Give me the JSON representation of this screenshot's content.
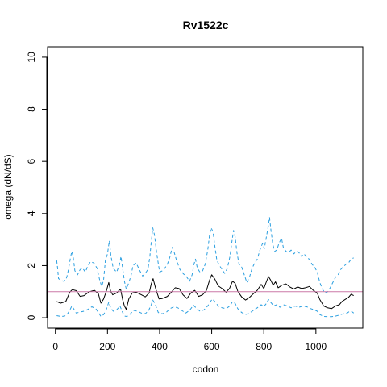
{
  "chart_data": {
    "type": "line",
    "title": "Rv1522c",
    "xlabel": "codon",
    "ylabel": "omega (dN/dS)",
    "xlim": [
      -30,
      1180
    ],
    "ylim": [
      -0.4,
      10.4
    ],
    "x_ticks": [
      0,
      200,
      400,
      600,
      800,
      1000
    ],
    "y_ticks": [
      0,
      2,
      4,
      6,
      8,
      10
    ],
    "x_tick_labels": [
      "0",
      "200",
      "400",
      "600",
      "800",
      "1000"
    ],
    "y_tick_labels": [
      "0",
      "2",
      "4",
      "6",
      "8",
      "10"
    ],
    "reference_line": {
      "y": 1,
      "color": "#cc79a7"
    },
    "series": [
      {
        "style": "solid",
        "color": "#000000",
        "points": [
          [
            5,
            0.62
          ],
          [
            20,
            0.56
          ],
          [
            40,
            0.62
          ],
          [
            55,
            0.98
          ],
          [
            65,
            1.08
          ],
          [
            80,
            1.04
          ],
          [
            95,
            0.82
          ],
          [
            110,
            0.85
          ],
          [
            130,
            1.0
          ],
          [
            150,
            1.05
          ],
          [
            165,
            0.92
          ],
          [
            175,
            0.56
          ],
          [
            185,
            0.72
          ],
          [
            195,
            1.0
          ],
          [
            205,
            1.35
          ],
          [
            212,
            1.02
          ],
          [
            220,
            0.88
          ],
          [
            235,
            0.95
          ],
          [
            250,
            1.1
          ],
          [
            258,
            0.7
          ],
          [
            265,
            0.45
          ],
          [
            272,
            0.32
          ],
          [
            282,
            0.72
          ],
          [
            295,
            0.95
          ],
          [
            310,
            0.98
          ],
          [
            330,
            0.88
          ],
          [
            345,
            0.8
          ],
          [
            360,
            0.95
          ],
          [
            368,
            1.3
          ],
          [
            375,
            1.5
          ],
          [
            385,
            1.12
          ],
          [
            398,
            0.72
          ],
          [
            410,
            0.74
          ],
          [
            430,
            0.82
          ],
          [
            445,
            0.98
          ],
          [
            460,
            1.15
          ],
          [
            475,
            1.12
          ],
          [
            490,
            0.88
          ],
          [
            505,
            0.74
          ],
          [
            520,
            0.95
          ],
          [
            535,
            1.05
          ],
          [
            550,
            0.82
          ],
          [
            565,
            0.88
          ],
          [
            580,
            1.05
          ],
          [
            592,
            1.45
          ],
          [
            600,
            1.65
          ],
          [
            612,
            1.48
          ],
          [
            625,
            1.22
          ],
          [
            640,
            1.12
          ],
          [
            655,
            0.98
          ],
          [
            668,
            1.12
          ],
          [
            680,
            1.4
          ],
          [
            690,
            1.32
          ],
          [
            700,
            1.02
          ],
          [
            715,
            0.8
          ],
          [
            730,
            0.68
          ],
          [
            745,
            0.78
          ],
          [
            760,
            0.92
          ],
          [
            775,
            1.05
          ],
          [
            790,
            1.28
          ],
          [
            800,
            1.12
          ],
          [
            810,
            1.38
          ],
          [
            818,
            1.58
          ],
          [
            826,
            1.45
          ],
          [
            836,
            1.25
          ],
          [
            845,
            1.38
          ],
          [
            855,
            1.15
          ],
          [
            870,
            1.25
          ],
          [
            885,
            1.3
          ],
          [
            900,
            1.18
          ],
          [
            915,
            1.1
          ],
          [
            930,
            1.18
          ],
          [
            945,
            1.12
          ],
          [
            960,
            1.15
          ],
          [
            975,
            1.2
          ],
          [
            990,
            1.05
          ],
          [
            1005,
            0.95
          ],
          [
            1015,
            0.7
          ],
          [
            1030,
            0.45
          ],
          [
            1045,
            0.38
          ],
          [
            1060,
            0.35
          ],
          [
            1075,
            0.45
          ],
          [
            1090,
            0.5
          ],
          [
            1100,
            0.62
          ],
          [
            1115,
            0.72
          ],
          [
            1125,
            0.78
          ],
          [
            1135,
            0.9
          ],
          [
            1145,
            0.85
          ]
        ]
      },
      {
        "style": "dashed",
        "color": "#2b9fe0",
        "points": [
          [
            5,
            2.2
          ],
          [
            8,
            1.95
          ],
          [
            12,
            1.5
          ],
          [
            20,
            1.45
          ],
          [
            30,
            1.4
          ],
          [
            40,
            1.45
          ],
          [
            45,
            1.6
          ],
          [
            50,
            1.85
          ],
          [
            58,
            2.3
          ],
          [
            63,
            2.55
          ],
          [
            68,
            2.35
          ],
          [
            75,
            1.8
          ],
          [
            85,
            1.65
          ],
          [
            95,
            1.85
          ],
          [
            105,
            1.9
          ],
          [
            115,
            1.75
          ],
          [
            125,
            2.0
          ],
          [
            135,
            2.15
          ],
          [
            148,
            2.1
          ],
          [
            160,
            1.9
          ],
          [
            170,
            1.45
          ],
          [
            178,
            1.2
          ],
          [
            185,
            1.45
          ],
          [
            192,
            2.2
          ],
          [
            200,
            2.45
          ],
          [
            207,
            2.95
          ],
          [
            213,
            2.4
          ],
          [
            222,
            1.9
          ],
          [
            235,
            1.75
          ],
          [
            245,
            2.0
          ],
          [
            252,
            2.35
          ],
          [
            258,
            1.9
          ],
          [
            265,
            1.4
          ],
          [
            272,
            1.1
          ],
          [
            280,
            1.3
          ],
          [
            290,
            1.6
          ],
          [
            298,
            2.0
          ],
          [
            310,
            2.1
          ],
          [
            322,
            1.85
          ],
          [
            335,
            1.6
          ],
          [
            345,
            1.7
          ],
          [
            355,
            1.85
          ],
          [
            362,
            2.3
          ],
          [
            368,
            2.9
          ],
          [
            374,
            3.45
          ],
          [
            380,
            3.2
          ],
          [
            390,
            2.4
          ],
          [
            400,
            1.75
          ],
          [
            410,
            1.8
          ],
          [
            420,
            1.9
          ],
          [
            430,
            2.05
          ],
          [
            440,
            2.35
          ],
          [
            448,
            2.7
          ],
          [
            455,
            2.55
          ],
          [
            465,
            2.2
          ],
          [
            478,
            1.85
          ],
          [
            490,
            1.7
          ],
          [
            505,
            1.55
          ],
          [
            515,
            1.4
          ],
          [
            525,
            1.65
          ],
          [
            532,
            2.05
          ],
          [
            538,
            2.25
          ],
          [
            545,
            1.9
          ],
          [
            555,
            1.75
          ],
          [
            565,
            1.8
          ],
          [
            575,
            2.05
          ],
          [
            585,
            2.6
          ],
          [
            592,
            3.2
          ],
          [
            598,
            3.45
          ],
          [
            605,
            3.3
          ],
          [
            612,
            2.75
          ],
          [
            620,
            2.2
          ],
          [
            630,
            2.0
          ],
          [
            640,
            1.85
          ],
          [
            650,
            1.7
          ],
          [
            660,
            1.9
          ],
          [
            670,
            2.35
          ],
          [
            678,
            2.95
          ],
          [
            684,
            3.35
          ],
          [
            690,
            3.1
          ],
          [
            697,
            2.5
          ],
          [
            705,
            2.05
          ],
          [
            715,
            1.95
          ],
          [
            725,
            1.65
          ],
          [
            735,
            1.35
          ],
          [
            745,
            1.55
          ],
          [
            755,
            1.9
          ],
          [
            765,
            2.1
          ],
          [
            775,
            2.25
          ],
          [
            785,
            2.6
          ],
          [
            795,
            2.85
          ],
          [
            802,
            2.65
          ],
          [
            810,
            3.1
          ],
          [
            817,
            3.5
          ],
          [
            822,
            3.85
          ],
          [
            828,
            3.3
          ],
          [
            835,
            2.8
          ],
          [
            842,
            2.55
          ],
          [
            850,
            2.6
          ],
          [
            858,
            2.85
          ],
          [
            868,
            3.05
          ],
          [
            875,
            2.7
          ],
          [
            885,
            2.55
          ],
          [
            895,
            2.5
          ],
          [
            905,
            2.6
          ],
          [
            915,
            2.45
          ],
          [
            925,
            2.55
          ],
          [
            935,
            2.5
          ],
          [
            945,
            2.35
          ],
          [
            955,
            2.45
          ],
          [
            965,
            2.3
          ],
          [
            975,
            2.25
          ],
          [
            985,
            2.05
          ],
          [
            995,
            1.95
          ],
          [
            1005,
            1.75
          ],
          [
            1015,
            1.35
          ],
          [
            1025,
            1.1
          ],
          [
            1035,
            0.95
          ],
          [
            1045,
            1.0
          ],
          [
            1055,
            1.15
          ],
          [
            1065,
            1.35
          ],
          [
            1075,
            1.55
          ],
          [
            1085,
            1.65
          ],
          [
            1095,
            1.85
          ],
          [
            1105,
            1.95
          ],
          [
            1115,
            2.05
          ],
          [
            1125,
            2.1
          ],
          [
            1135,
            2.25
          ],
          [
            1145,
            2.3
          ]
        ]
      },
      {
        "style": "dashed",
        "color": "#2b9fe0",
        "points": [
          [
            5,
            0.08
          ],
          [
            20,
            0.05
          ],
          [
            35,
            0.06
          ],
          [
            45,
            0.12
          ],
          [
            55,
            0.28
          ],
          [
            63,
            0.45
          ],
          [
            70,
            0.35
          ],
          [
            80,
            0.18
          ],
          [
            95,
            0.22
          ],
          [
            110,
            0.25
          ],
          [
            125,
            0.32
          ],
          [
            140,
            0.42
          ],
          [
            155,
            0.35
          ],
          [
            165,
            0.2
          ],
          [
            175,
            0.05
          ],
          [
            185,
            0.12
          ],
          [
            195,
            0.3
          ],
          [
            205,
            0.6
          ],
          [
            212,
            0.38
          ],
          [
            222,
            0.25
          ],
          [
            235,
            0.3
          ],
          [
            248,
            0.45
          ],
          [
            258,
            0.2
          ],
          [
            265,
            0.06
          ],
          [
            275,
            0.05
          ],
          [
            285,
            0.12
          ],
          [
            300,
            0.28
          ],
          [
            315,
            0.25
          ],
          [
            330,
            0.18
          ],
          [
            345,
            0.15
          ],
          [
            358,
            0.28
          ],
          [
            368,
            0.5
          ],
          [
            374,
            0.68
          ],
          [
            382,
            0.55
          ],
          [
            395,
            0.2
          ],
          [
            410,
            0.15
          ],
          [
            425,
            0.2
          ],
          [
            440,
            0.35
          ],
          [
            455,
            0.42
          ],
          [
            470,
            0.38
          ],
          [
            485,
            0.28
          ],
          [
            500,
            0.18
          ],
          [
            515,
            0.28
          ],
          [
            530,
            0.48
          ],
          [
            540,
            0.38
          ],
          [
            555,
            0.25
          ],
          [
            570,
            0.3
          ],
          [
            585,
            0.45
          ],
          [
            595,
            0.62
          ],
          [
            603,
            0.72
          ],
          [
            612,
            0.62
          ],
          [
            625,
            0.45
          ],
          [
            640,
            0.38
          ],
          [
            655,
            0.35
          ],
          [
            670,
            0.45
          ],
          [
            680,
            0.62
          ],
          [
            690,
            0.55
          ],
          [
            700,
            0.35
          ],
          [
            715,
            0.2
          ],
          [
            730,
            0.12
          ],
          [
            745,
            0.18
          ],
          [
            760,
            0.28
          ],
          [
            775,
            0.38
          ],
          [
            790,
            0.5
          ],
          [
            800,
            0.42
          ],
          [
            810,
            0.55
          ],
          [
            818,
            0.7
          ],
          [
            826,
            0.6
          ],
          [
            838,
            0.45
          ],
          [
            850,
            0.5
          ],
          [
            862,
            0.4
          ],
          [
            875,
            0.5
          ],
          [
            890,
            0.45
          ],
          [
            905,
            0.38
          ],
          [
            920,
            0.45
          ],
          [
            935,
            0.4
          ],
          [
            950,
            0.45
          ],
          [
            965,
            0.42
          ],
          [
            980,
            0.35
          ],
          [
            995,
            0.3
          ],
          [
            1005,
            0.25
          ],
          [
            1015,
            0.12
          ],
          [
            1030,
            0.05
          ],
          [
            1045,
            0.04
          ],
          [
            1060,
            0.04
          ],
          [
            1075,
            0.06
          ],
          [
            1090,
            0.1
          ],
          [
            1105,
            0.15
          ],
          [
            1120,
            0.18
          ],
          [
            1130,
            0.25
          ],
          [
            1140,
            0.22
          ],
          [
            1145,
            0.18
          ]
        ]
      }
    ]
  }
}
